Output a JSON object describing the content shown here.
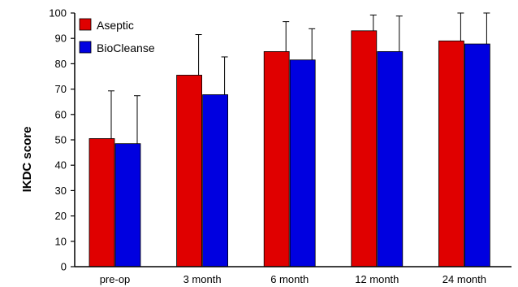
{
  "chart_data": {
    "type": "bar",
    "title": "",
    "xlabel": "",
    "ylabel": "IKDC score",
    "ylim": [
      0,
      100
    ],
    "yticks": [
      0,
      10,
      20,
      30,
      40,
      50,
      60,
      70,
      80,
      90,
      100
    ],
    "grid": false,
    "legend_position": "top-left",
    "categories": [
      "pre-op",
      "3 month",
      "6 month",
      "12 month",
      "24 month"
    ],
    "series": [
      {
        "name": "Aseptic",
        "color": "#e00000",
        "values": [
          50.5,
          75.5,
          84.8,
          93.0,
          89.0
        ],
        "error": [
          18.8,
          16.0,
          11.8,
          6.2,
          11.0
        ]
      },
      {
        "name": "BioCleanse",
        "color": "#0000e0",
        "values": [
          48.5,
          67.8,
          81.5,
          84.8,
          87.8
        ],
        "error": [
          18.9,
          14.9,
          12.3,
          14.0,
          12.2
        ]
      }
    ]
  }
}
